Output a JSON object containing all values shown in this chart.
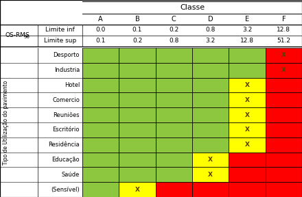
{
  "col_labels": [
    "A",
    "B",
    "C",
    "D",
    "E",
    "F"
  ],
  "row_labels": [
    "Desporto",
    "Industria",
    "Hotel",
    "Comercio",
    "Reuniões",
    "Escritório",
    "Residência",
    "Educação",
    "Saúde",
    "(Sensível)"
  ],
  "limite_inf": [
    "0.0",
    "0.1",
    "0.2",
    "0.8",
    "3.2",
    "12.8"
  ],
  "limite_sup": [
    "0.1",
    "0.2",
    "0.8",
    "3.2",
    "12.8",
    "51.2"
  ],
  "green": "#8dc63f",
  "yellow": "#ffff00",
  "red": "#ff0000",
  "white": "#ffffff",
  "cell_colors": [
    [
      "green",
      "green",
      "green",
      "green",
      "green",
      "red"
    ],
    [
      "green",
      "green",
      "green",
      "green",
      "green",
      "red"
    ],
    [
      "green",
      "green",
      "green",
      "green",
      "yellow",
      "red"
    ],
    [
      "green",
      "green",
      "green",
      "green",
      "yellow",
      "red"
    ],
    [
      "green",
      "green",
      "green",
      "green",
      "yellow",
      "red"
    ],
    [
      "green",
      "green",
      "green",
      "green",
      "yellow",
      "red"
    ],
    [
      "green",
      "green",
      "green",
      "green",
      "yellow",
      "red"
    ],
    [
      "green",
      "green",
      "green",
      "yellow",
      "red",
      "red"
    ],
    [
      "green",
      "green",
      "green",
      "yellow",
      "red",
      "red"
    ],
    [
      "green",
      "yellow",
      "red",
      "red",
      "red",
      "red"
    ]
  ],
  "x_markers": [
    [
      5
    ],
    [
      5
    ],
    [
      4
    ],
    [
      4
    ],
    [
      4
    ],
    [
      4
    ],
    [
      4
    ],
    [
      3
    ],
    [
      3
    ],
    [
      1
    ]
  ],
  "title": "Classe",
  "ylabel": "Tipo de Utilização do pavimento",
  "os_label": "OS-RMS",
  "os_subscript": "90",
  "lim_inf_label": "Limite inf",
  "lim_sup_label": "Limite sup",
  "x_color": "#5a3e00"
}
